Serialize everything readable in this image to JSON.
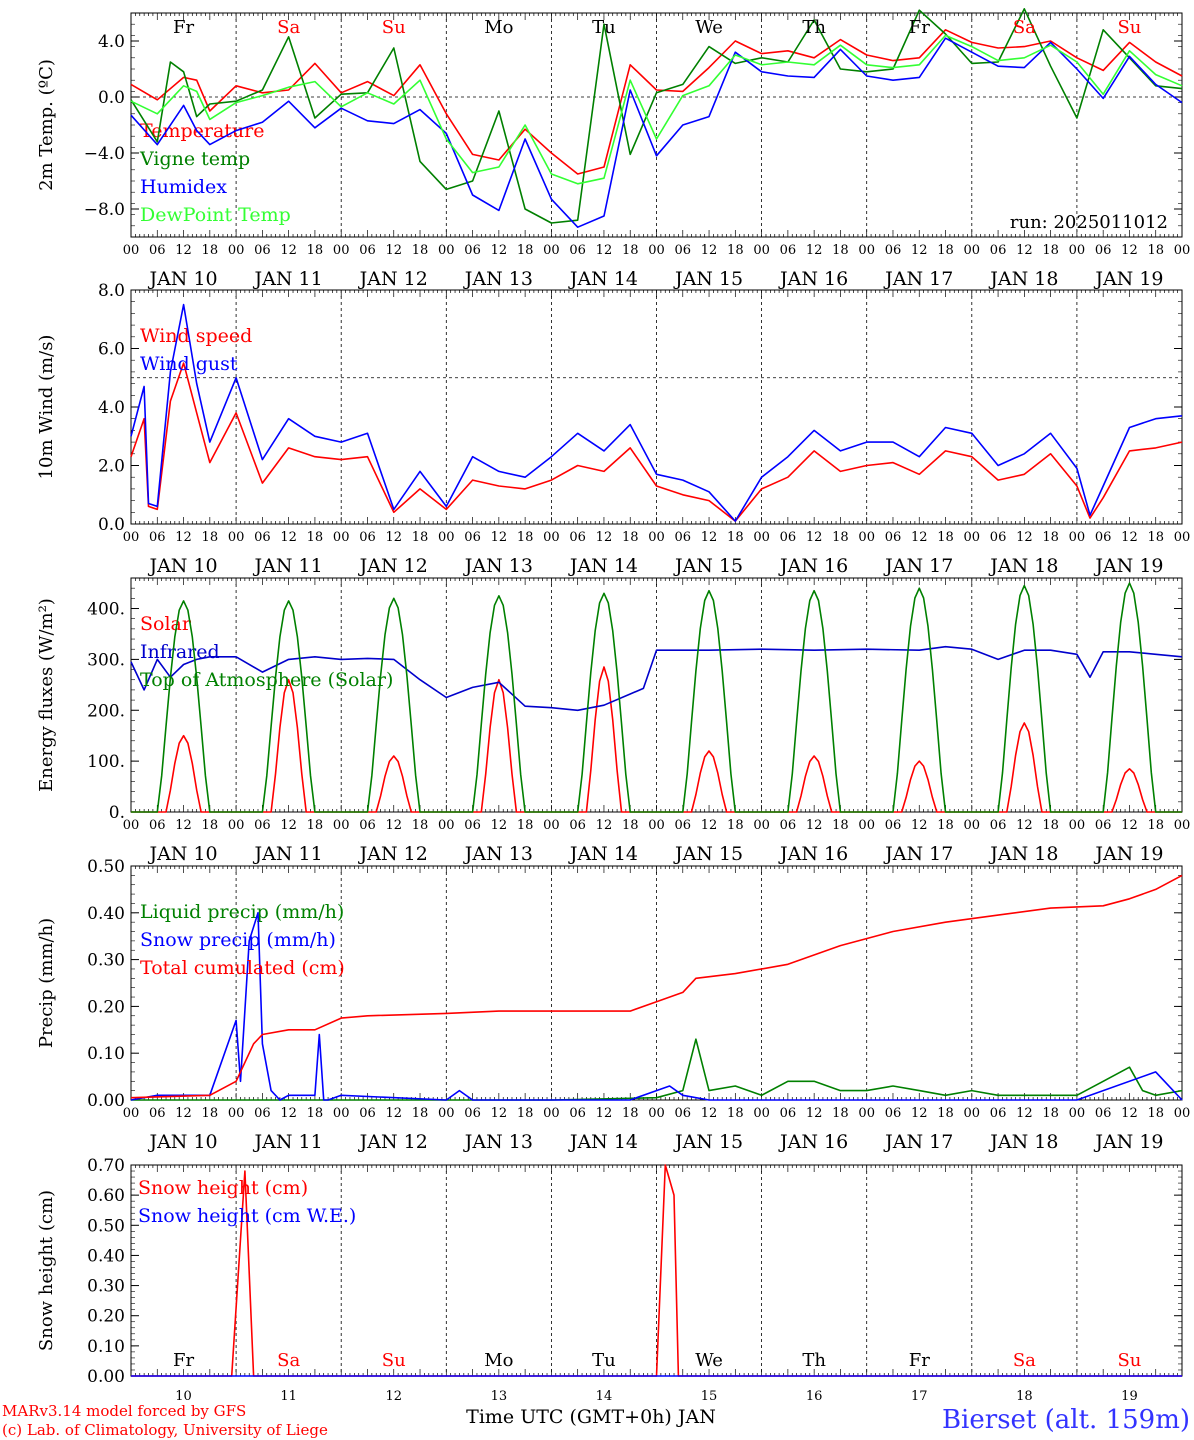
{
  "chart_data": [
    {
      "type": "line",
      "ylabel": "2m Temp. (ºC)",
      "ylim": [
        -10,
        6
      ],
      "yticks": [
        -8,
        -4,
        0,
        4
      ],
      "ytick_labels": [
        "−8.0",
        "−4.0",
        "0.0",
        "4.0"
      ],
      "zero_line": 0,
      "annotation": "run: 2025011012",
      "series": [
        {
          "name": "Temperature",
          "color": "#ff0000",
          "x": [
            0,
            6,
            12,
            15,
            18,
            24,
            30,
            36,
            42,
            48,
            54,
            60,
            66,
            72,
            78,
            84,
            90,
            96,
            102,
            108,
            114,
            120,
            126,
            132,
            138,
            144,
            150,
            156,
            162,
            168,
            174,
            180,
            186,
            192,
            198,
            204,
            210,
            216,
            222,
            228,
            234,
            240
          ],
          "y": [
            0.9,
            -0.2,
            1.4,
            1.2,
            -1.0,
            0.8,
            0.3,
            0.5,
            2.4,
            0.3,
            1.1,
            0.1,
            2.3,
            -1.2,
            -4.1,
            -4.5,
            -2.3,
            -4.0,
            -5.5,
            -5.0,
            2.3,
            0.5,
            0.4,
            2.1,
            4.0,
            3.1,
            3.3,
            2.8,
            4.1,
            3.0,
            2.6,
            2.8,
            4.8,
            3.9,
            3.5,
            3.6,
            4.0,
            2.8,
            1.9,
            3.9,
            2.5,
            1.5
          ]
        },
        {
          "name": "Vigne temp",
          "color": "#008000",
          "x": [
            0,
            6,
            9,
            12,
            15,
            18,
            24,
            30,
            36,
            42,
            48,
            54,
            60,
            66,
            72,
            78,
            84,
            90,
            96,
            102,
            108,
            114,
            120,
            126,
            132,
            138,
            144,
            150,
            156,
            162,
            168,
            174,
            180,
            186,
            192,
            198,
            204,
            210,
            216,
            222,
            228,
            234,
            240
          ],
          "y": [
            -0.2,
            -3.2,
            2.5,
            1.8,
            -1.4,
            -0.5,
            -0.3,
            0.5,
            4.3,
            -1.5,
            0.2,
            0.3,
            3.5,
            -4.6,
            -6.6,
            -6.0,
            -1.0,
            -8.0,
            -9.0,
            -8.8,
            5.2,
            -4.1,
            0.3,
            0.9,
            3.6,
            2.4,
            2.8,
            2.5,
            5.5,
            2.0,
            1.8,
            2.0,
            6.2,
            4.5,
            2.4,
            2.5,
            6.3,
            2.2,
            -1.5,
            4.8,
            2.8,
            0.8,
            0.6
          ]
        },
        {
          "name": "Humidex",
          "color": "#0000ff",
          "x": [
            0,
            6,
            12,
            15,
            18,
            24,
            30,
            36,
            42,
            48,
            54,
            60,
            66,
            72,
            78,
            84,
            90,
            96,
            102,
            108,
            114,
            120,
            126,
            132,
            138,
            144,
            150,
            156,
            162,
            168,
            174,
            180,
            186,
            192,
            198,
            204,
            210,
            216,
            222,
            228,
            234,
            240
          ],
          "y": [
            -1.3,
            -3.4,
            -0.6,
            -2.4,
            -3.4,
            -2.4,
            -1.8,
            -0.3,
            -2.2,
            -0.8,
            -1.7,
            -1.9,
            -0.9,
            -2.6,
            -7.0,
            -8.1,
            -3.0,
            -7.3,
            -9.3,
            -8.5,
            0.5,
            -4.2,
            -2.0,
            -1.4,
            3.2,
            1.8,
            1.5,
            1.4,
            3.4,
            1.5,
            1.2,
            1.4,
            4.2,
            3.2,
            2.2,
            2.1,
            3.9,
            2.0,
            -0.1,
            2.9,
            0.9,
            -0.4
          ]
        },
        {
          "name": "DewPoint Temp",
          "color": "#33ff33",
          "x": [
            0,
            6,
            12,
            15,
            18,
            24,
            30,
            36,
            42,
            48,
            54,
            60,
            66,
            72,
            78,
            84,
            90,
            96,
            102,
            108,
            114,
            120,
            126,
            132,
            138,
            144,
            150,
            156,
            162,
            168,
            174,
            180,
            186,
            192,
            198,
            204,
            210,
            216,
            222,
            228,
            234,
            240
          ],
          "y": [
            -0.3,
            -1.2,
            0.8,
            0.4,
            -1.6,
            -0.4,
            0.1,
            0.7,
            1.1,
            -0.7,
            0.3,
            -0.5,
            1.2,
            -3.0,
            -5.4,
            -5.0,
            -2.0,
            -5.5,
            -6.2,
            -5.8,
            1.2,
            -3.0,
            0.1,
            0.8,
            3.0,
            2.3,
            2.5,
            2.3,
            3.7,
            2.3,
            2.1,
            2.3,
            4.4,
            3.6,
            2.6,
            2.8,
            3.7,
            2.5,
            0.2,
            3.3,
            1.6,
            0.8
          ]
        }
      ]
    },
    {
      "type": "line",
      "ylabel": "10m Wind (m/s)",
      "ylim": [
        0,
        8
      ],
      "yticks": [
        0,
        2,
        4,
        6,
        8
      ],
      "ytick_labels": [
        "0.0",
        "2.0",
        "4.0",
        "6.0",
        "8.0"
      ],
      "ref_line": 5,
      "series": [
        {
          "name": "Wind speed",
          "color": "#ff0000",
          "x": [
            0,
            3,
            4,
            6,
            9,
            12,
            15,
            18,
            24,
            30,
            36,
            42,
            48,
            54,
            60,
            66,
            72,
            78,
            84,
            90,
            96,
            102,
            108,
            114,
            120,
            126,
            132,
            138,
            144,
            150,
            156,
            162,
            168,
            174,
            180,
            186,
            192,
            198,
            204,
            210,
            216,
            219,
            222,
            228,
            234,
            240
          ],
          "y": [
            2.3,
            3.6,
            0.6,
            0.5,
            4.2,
            5.5,
            3.8,
            2.1,
            3.8,
            1.4,
            2.6,
            2.3,
            2.2,
            2.3,
            0.4,
            1.2,
            0.5,
            1.5,
            1.3,
            1.2,
            1.5,
            2.0,
            1.8,
            2.6,
            1.3,
            1.0,
            0.8,
            0.1,
            1.2,
            1.6,
            2.5,
            1.8,
            2.0,
            2.1,
            1.7,
            2.5,
            2.3,
            1.5,
            1.7,
            2.4,
            1.3,
            0.2,
            0.9,
            2.5,
            2.6,
            2.8
          ]
        },
        {
          "name": "Wind gust",
          "color": "#0000ff",
          "x": [
            0,
            3,
            4,
            6,
            9,
            12,
            15,
            18,
            24,
            30,
            36,
            42,
            48,
            54,
            60,
            66,
            72,
            78,
            84,
            90,
            96,
            102,
            108,
            114,
            120,
            126,
            132,
            138,
            144,
            150,
            156,
            162,
            168,
            174,
            180,
            186,
            192,
            198,
            204,
            210,
            216,
            219,
            222,
            228,
            234,
            240
          ],
          "y": [
            3.0,
            4.7,
            0.7,
            0.6,
            5.2,
            7.5,
            4.8,
            2.8,
            5.0,
            2.2,
            3.6,
            3.0,
            2.8,
            3.1,
            0.5,
            1.8,
            0.6,
            2.3,
            1.8,
            1.6,
            2.3,
            3.1,
            2.5,
            3.4,
            1.7,
            1.5,
            1.1,
            0.1,
            1.6,
            2.3,
            3.2,
            2.5,
            2.8,
            2.8,
            2.3,
            3.3,
            3.1,
            2.0,
            2.4,
            3.1,
            1.9,
            0.3,
            1.3,
            3.3,
            3.6,
            3.7
          ]
        }
      ]
    },
    {
      "type": "line",
      "ylabel": "Energy fluxes (W/m²)",
      "ylim": [
        0,
        460
      ],
      "yticks": [
        0,
        100,
        200,
        300,
        400
      ],
      "ytick_labels": [
        "0.",
        "100.",
        "200.",
        "300.",
        "400."
      ],
      "series": [
        {
          "name": "Solar",
          "color": "#ff0000",
          "peaks": [
            150,
            260,
            110,
            260,
            285,
            120,
            110,
            100,
            175,
            85
          ]
        },
        {
          "name": "Infrared",
          "color": "#0000cc",
          "x": [
            0,
            3,
            6,
            9,
            12,
            15,
            18,
            24,
            30,
            36,
            42,
            48,
            54,
            60,
            66,
            72,
            78,
            84,
            90,
            96,
            102,
            108,
            114,
            117,
            120,
            132,
            144,
            156,
            168,
            180,
            186,
            192,
            198,
            204,
            210,
            216,
            219,
            222,
            228,
            234,
            240
          ],
          "y": [
            295,
            240,
            300,
            265,
            290,
            300,
            305,
            305,
            275,
            300,
            305,
            300,
            302,
            300,
            260,
            225,
            245,
            255,
            208,
            205,
            200,
            210,
            232,
            243,
            318,
            318,
            320,
            318,
            320,
            318,
            325,
            320,
            300,
            318,
            318,
            310,
            265,
            315,
            315,
            310,
            305
          ]
        },
        {
          "name": "Top of Atmosphere (Solar)",
          "color": "#008000",
          "peaks": [
            415,
            415,
            420,
            425,
            430,
            435,
            435,
            440,
            445,
            450
          ]
        }
      ]
    },
    {
      "type": "line",
      "ylabel": "Precip (mm/h)",
      "ylim": [
        0,
        0.5
      ],
      "yticks": [
        0,
        0.1,
        0.2,
        0.3,
        0.4,
        0.5
      ],
      "ytick_labels": [
        "0.00",
        "0.10",
        "0.20",
        "0.30",
        "0.40",
        "0.50"
      ],
      "series": [
        {
          "name": "Liquid precip (mm/h)",
          "color": "#008000",
          "x": [
            0,
            96,
            120,
            126,
            129,
            132,
            138,
            144,
            150,
            156,
            162,
            168,
            174,
            180,
            186,
            192,
            198,
            204,
            210,
            216,
            222,
            228,
            231,
            234,
            240
          ],
          "y": [
            0,
            0,
            0.005,
            0.02,
            0.13,
            0.02,
            0.03,
            0.01,
            0.04,
            0.04,
            0.02,
            0.02,
            0.03,
            0.02,
            0.01,
            0.02,
            0.01,
            0.01,
            0.01,
            0.01,
            0.04,
            0.07,
            0.02,
            0.01,
            0.02
          ]
        },
        {
          "name": "Snow precip (mm/h)",
          "color": "#0000ff",
          "x": [
            0,
            6,
            12,
            18,
            24,
            25,
            27,
            29,
            30,
            32,
            34,
            36,
            42,
            43,
            44,
            45,
            48,
            72,
            75,
            78,
            114,
            120,
            123,
            126,
            132,
            216,
            234,
            236,
            240
          ],
          "y": [
            0,
            0.01,
            0.01,
            0.01,
            0.17,
            0.04,
            0.34,
            0.4,
            0.12,
            0.02,
            0.0,
            0.01,
            0.01,
            0.14,
            0.0,
            0.0,
            0.01,
            0.0,
            0.02,
            0.0,
            0.0,
            0.02,
            0.03,
            0.01,
            0.0,
            0.0,
            0.06,
            0.04,
            0.0
          ]
        },
        {
          "name": "Total cumulated (cm)",
          "color": "#ff0000",
          "x": [
            0,
            18,
            24,
            28,
            30,
            36,
            42,
            48,
            54,
            72,
            84,
            96,
            114,
            120,
            126,
            129,
            138,
            150,
            162,
            174,
            186,
            198,
            210,
            222,
            228,
            234,
            240
          ],
          "y": [
            0.005,
            0.01,
            0.04,
            0.12,
            0.14,
            0.15,
            0.15,
            0.175,
            0.18,
            0.185,
            0.19,
            0.19,
            0.19,
            0.21,
            0.23,
            0.26,
            0.27,
            0.29,
            0.33,
            0.36,
            0.38,
            0.395,
            0.41,
            0.415,
            0.43,
            0.45,
            0.48
          ]
        }
      ]
    },
    {
      "type": "line",
      "ylabel": "Snow height (cm)",
      "ylim": [
        0,
        0.7
      ],
      "yticks": [
        0,
        0.1,
        0.2,
        0.3,
        0.4,
        0.5,
        0.6,
        0.7
      ],
      "ytick_labels": [
        "0.00",
        "0.10",
        "0.20",
        "0.30",
        "0.40",
        "0.50",
        "0.60",
        "0.70"
      ],
      "xlabel": "Time UTC (GMT+0h) JAN",
      "series": [
        {
          "name": "Snow height (cm)",
          "color": "#ff0000",
          "x": [
            0,
            23,
            26,
            28,
            120,
            122,
            124,
            125,
            240
          ],
          "y": [
            0,
            0,
            0.68,
            0,
            0,
            0.7,
            0.6,
            0,
            0
          ]
        },
        {
          "name": "Snow height (cm W.E.)",
          "color": "#0000ff",
          "x": [
            0,
            240
          ],
          "y": [
            0,
            0
          ]
        }
      ]
    }
  ],
  "x_axis": {
    "hour_labels": [
      "00",
      "06",
      "12",
      "18"
    ],
    "end_label": "00",
    "date_labels": [
      "JAN 10",
      "JAN 11",
      "JAN 12",
      "JAN 13",
      "JAN 14",
      "JAN 15",
      "JAN 16",
      "JAN 17",
      "JAN 18",
      "JAN 19"
    ],
    "day_numbers": [
      "10",
      "11",
      "12",
      "13",
      "14",
      "15",
      "16",
      "17",
      "18",
      "19"
    ],
    "weekdays": [
      "Fr",
      "Sa",
      "Su",
      "Mo",
      "Tu",
      "We",
      "Th",
      "Fr",
      "Sa",
      "Su"
    ],
    "weekend_color": "#ff0000",
    "weekday_color": "#000000"
  },
  "footer": {
    "credit_line1": "MARv3.14 model forced by GFS",
    "credit_line2": "(c) Lab. of Climatology, University of Liege",
    "station": "Bierset (alt. 159m)"
  }
}
